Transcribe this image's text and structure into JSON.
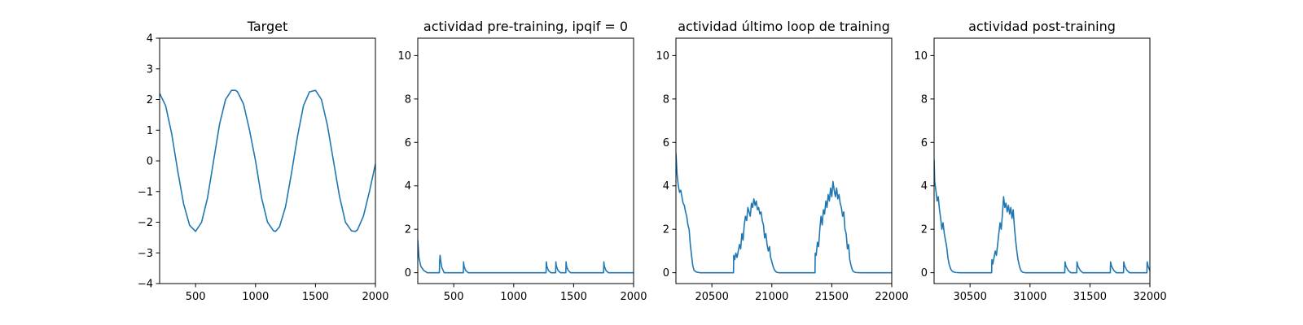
{
  "colors": {
    "series": "#1f77b4"
  },
  "chart_data": [
    {
      "type": "line",
      "title": "Target",
      "xlabel": "",
      "ylabel": "",
      "xlim": [
        200,
        2000
      ],
      "ylim": [
        -4,
        4
      ],
      "xticks": [
        500,
        1000,
        1500,
        2000
      ],
      "xtick_labels": [
        "500",
        "1000",
        "1500",
        "2000"
      ],
      "yticks": [
        -4,
        -3,
        -2,
        -1,
        0,
        1,
        2,
        3,
        4
      ],
      "ytick_labels": [
        "−4",
        "−3",
        "−2",
        "−1",
        "0",
        "1",
        "2",
        "3",
        "4"
      ],
      "series": [
        {
          "x": [
            200,
            250,
            300,
            350,
            400,
            450,
            500,
            550,
            600,
            650,
            700,
            750,
            800,
            833,
            850,
            900,
            950,
            1000,
            1050,
            1100,
            1150,
            1167,
            1200,
            1250,
            1300,
            1350,
            1400,
            1450,
            1500,
            1550,
            1600,
            1650,
            1700,
            1750,
            1800,
            1833,
            1850,
            1900,
            1950,
            2000
          ],
          "y": [
            2.2,
            1.8,
            0.9,
            -0.3,
            -1.4,
            -2.1,
            -2.3,
            -2.0,
            -1.2,
            0.0,
            1.2,
            2.0,
            2.3,
            2.3,
            2.25,
            1.85,
            1.0,
            0.0,
            -1.2,
            -2.0,
            -2.28,
            -2.3,
            -2.15,
            -1.5,
            -0.4,
            0.8,
            1.8,
            2.25,
            2.3,
            2.0,
            1.15,
            0.0,
            -1.15,
            -2.0,
            -2.28,
            -2.3,
            -2.25,
            -1.8,
            -1.0,
            -0.1
          ]
        }
      ]
    },
    {
      "type": "line",
      "title": "actividad pre-training, ipqif = 0",
      "xlabel": "",
      "ylabel": "",
      "xlim": [
        200,
        2000
      ],
      "ylim": [
        -0.5,
        10.8
      ],
      "xticks": [
        500,
        1000,
        1500,
        2000
      ],
      "xtick_labels": [
        "500",
        "1000",
        "1500",
        "2000"
      ],
      "yticks": [
        0,
        2,
        4,
        6,
        8,
        10
      ],
      "ytick_labels": [
        "0",
        "2",
        "4",
        "6",
        "8",
        "10"
      ],
      "series": [
        {
          "x": [
            200,
            210,
            225,
            250,
            280,
            380,
            382,
            386,
            390,
            400,
            420,
            580,
            582,
            586,
            600,
            620,
            1270,
            1272,
            1276,
            1290,
            1310,
            1350,
            1352,
            1356,
            1370,
            1390,
            1435,
            1437,
            1441,
            1455,
            1475,
            1750,
            1752,
            1756,
            1770,
            1790,
            2000
          ],
          "y": [
            1.5,
            0.7,
            0.3,
            0.1,
            0.0,
            0.0,
            0.5,
            0.8,
            0.6,
            0.25,
            0.0,
            0.0,
            0.5,
            0.3,
            0.1,
            0.0,
            0.0,
            0.5,
            0.3,
            0.1,
            0.0,
            0.0,
            0.5,
            0.3,
            0.1,
            0.0,
            0.0,
            0.5,
            0.3,
            0.1,
            0.0,
            0.0,
            0.5,
            0.3,
            0.1,
            0.0,
            0.0
          ]
        }
      ]
    },
    {
      "type": "line",
      "title": "actividad último loop de training",
      "xlabel": "",
      "ylabel": "",
      "xlim": [
        20200,
        22000
      ],
      "ylim": [
        -0.5,
        10.8
      ],
      "xticks": [
        20500,
        21000,
        21500,
        22000
      ],
      "xtick_labels": [
        "20500",
        "21000",
        "21500",
        "22000"
      ],
      "yticks": [
        0,
        2,
        4,
        6,
        8,
        10
      ],
      "ytick_labels": [
        "0",
        "2",
        "4",
        "6",
        "8",
        "10"
      ],
      "series": [
        {
          "x": [
            20200,
            20210,
            20220,
            20230,
            20240,
            20250,
            20260,
            20270,
            20280,
            20290,
            20300,
            20310,
            20320,
            20330,
            20340,
            20350,
            20370,
            20400,
            20680,
            20682,
            20690,
            20700,
            20710,
            20720,
            20730,
            20740,
            20750,
            20760,
            20770,
            20780,
            20790,
            20800,
            20810,
            20820,
            20830,
            20840,
            20850,
            20860,
            20870,
            20880,
            20890,
            20900,
            20910,
            20920,
            20930,
            20940,
            20950,
            20960,
            20970,
            20980,
            20990,
            21000,
            21010,
            21020,
            21030,
            21040,
            21060,
            21100,
            21360,
            21362,
            21370,
            21380,
            21390,
            21400,
            21410,
            21420,
            21430,
            21440,
            21450,
            21460,
            21470,
            21480,
            21490,
            21500,
            21510,
            21520,
            21530,
            21540,
            21550,
            21560,
            21570,
            21580,
            21590,
            21600,
            21610,
            21620,
            21630,
            21640,
            21650,
            21660,
            21670,
            21680,
            21700,
            21740,
            22000
          ],
          "y": [
            5.5,
            4.5,
            4.0,
            3.7,
            3.8,
            3.5,
            3.2,
            3.1,
            2.8,
            2.6,
            2.2,
            2.0,
            1.3,
            0.8,
            0.35,
            0.12,
            0.03,
            0.0,
            0.0,
            0.8,
            0.6,
            0.9,
            0.7,
            1.0,
            1.3,
            1.1,
            1.8,
            1.5,
            2.2,
            2.6,
            2.4,
            3.0,
            2.8,
            2.6,
            3.2,
            3.0,
            3.4,
            3.1,
            3.3,
            2.9,
            3.0,
            2.7,
            2.8,
            2.4,
            2.2,
            1.6,
            1.8,
            1.3,
            1.0,
            1.2,
            0.7,
            0.5,
            0.3,
            0.15,
            0.07,
            0.02,
            0.0,
            0.0,
            0.0,
            0.9,
            0.8,
            1.4,
            1.2,
            2.0,
            2.6,
            2.2,
            2.9,
            2.7,
            3.3,
            3.0,
            3.6,
            3.3,
            3.9,
            3.5,
            4.2,
            3.8,
            3.5,
            3.9,
            3.4,
            3.6,
            3.2,
            3.0,
            2.6,
            2.8,
            2.0,
            1.8,
            1.1,
            1.3,
            0.6,
            0.35,
            0.15,
            0.05,
            0.01,
            0.0,
            0.0
          ]
        }
      ]
    },
    {
      "type": "line",
      "title": "actividad post-training",
      "xlabel": "",
      "ylabel": "",
      "xlim": [
        30200,
        32000
      ],
      "ylim": [
        -0.5,
        10.8
      ],
      "xticks": [
        30500,
        31000,
        31500,
        32000
      ],
      "xtick_labels": [
        "30500",
        "31000",
        "31500",
        "32000"
      ],
      "yticks": [
        0,
        2,
        4,
        6,
        8,
        10
      ],
      "ytick_labels": [
        "0",
        "2",
        "4",
        "6",
        "8",
        "10"
      ],
      "series": [
        {
          "x": [
            30200,
            30205,
            30215,
            30225,
            30235,
            30245,
            30255,
            30265,
            30275,
            30285,
            30295,
            30305,
            30315,
            30325,
            30340,
            30355,
            30380,
            30420,
            30680,
            30682,
            30690,
            30700,
            30710,
            30720,
            30730,
            30740,
            30750,
            30760,
            30770,
            30780,
            30790,
            30800,
            30810,
            30820,
            30830,
            30840,
            30850,
            30860,
            30870,
            30880,
            30890,
            30900,
            30910,
            30920,
            30930,
            30940,
            30960,
            31000,
            31290,
            31292,
            31300,
            31320,
            31340,
            31390,
            31392,
            31400,
            31420,
            31440,
            31670,
            31672,
            31680,
            31700,
            31720,
            31780,
            31782,
            31790,
            31810,
            31830,
            31975,
            31977,
            31985,
            32000
          ],
          "y": [
            5.2,
            4.2,
            3.8,
            3.3,
            3.5,
            2.9,
            2.5,
            2.0,
            2.3,
            1.8,
            1.5,
            1.2,
            0.7,
            0.4,
            0.15,
            0.05,
            0.01,
            0.0,
            0.0,
            0.6,
            0.4,
            0.7,
            1.0,
            0.8,
            1.3,
            1.8,
            2.3,
            2.0,
            2.7,
            3.5,
            3.0,
            3.2,
            2.8,
            3.1,
            2.7,
            3.0,
            2.5,
            2.9,
            2.1,
            1.5,
            1.0,
            0.6,
            0.35,
            0.15,
            0.06,
            0.02,
            0.0,
            0.0,
            0.0,
            0.5,
            0.3,
            0.1,
            0.0,
            0.0,
            0.5,
            0.3,
            0.1,
            0.0,
            0.0,
            0.5,
            0.3,
            0.1,
            0.0,
            0.0,
            0.5,
            0.3,
            0.1,
            0.0,
            0.0,
            0.5,
            0.3,
            0.1
          ]
        }
      ]
    }
  ]
}
